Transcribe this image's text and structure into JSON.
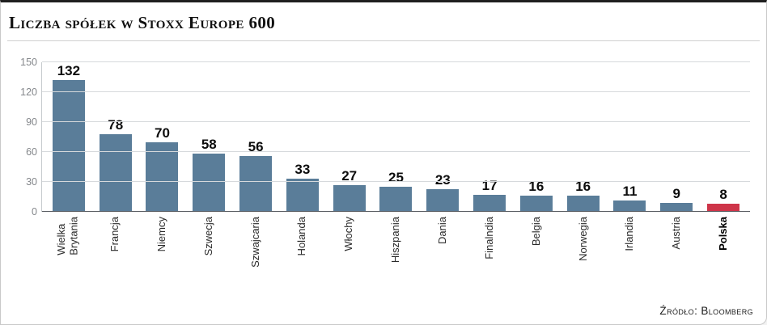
{
  "title": "Liczba spółek w Stoxx Europe 600",
  "source": "Źródło: Bloomberg",
  "chart_data": {
    "type": "bar",
    "categories": [
      "Wielka\nBrytania",
      "Francja",
      "Niemcy",
      "Szwecja",
      "Szwajcaria",
      "Holanda",
      "Włochy",
      "Hiszpania",
      "Dania",
      "Finalndia",
      "Belgia",
      "Norwegia",
      "Irlandia",
      "Austria",
      "Polska"
    ],
    "values": [
      132,
      78,
      70,
      58,
      56,
      33,
      27,
      25,
      23,
      17,
      16,
      16,
      11,
      9,
      8
    ],
    "title": "Liczba spółek w Stoxx Europe 600",
    "xlabel": "",
    "ylabel": "",
    "ylim": [
      0,
      150
    ],
    "yticks": [
      0,
      30,
      60,
      90,
      120,
      150
    ],
    "grid": true,
    "legend": "none",
    "bar_color": "#5a7d99",
    "highlight_category": "Polska",
    "highlight_color": "#ce3549"
  }
}
